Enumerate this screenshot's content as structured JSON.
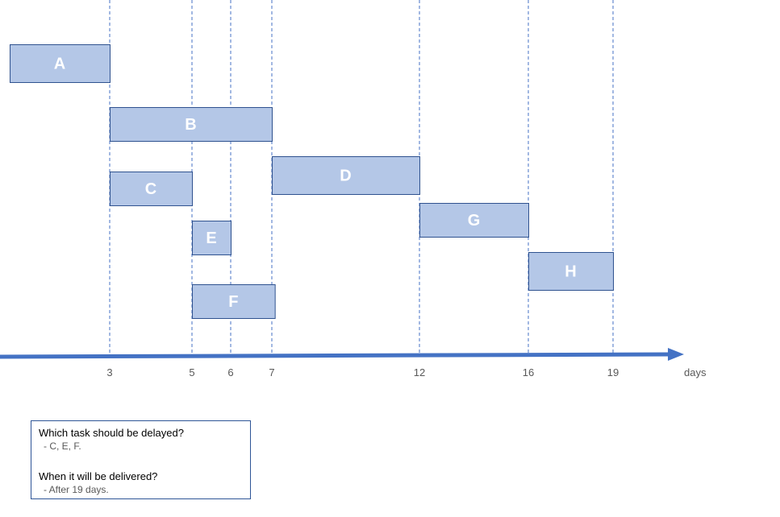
{
  "colors": {
    "bar_fill": "#b4c7e7",
    "bar_stroke": "#2f528f",
    "bar_text": "#ffffff",
    "axis": "#4472c4",
    "gridline": "#4472c4",
    "tick_text": "#595959",
    "box_border": "#2e5597"
  },
  "chart_data": {
    "type": "gantt",
    "axis_unit": "days",
    "ticks": [
      "3",
      "5",
      "6",
      "7",
      "12",
      "16",
      "19"
    ],
    "tick_values": [
      3,
      5,
      6,
      7,
      12,
      16,
      19
    ],
    "tasks": [
      {
        "name": "A",
        "start": 0,
        "end": 3
      },
      {
        "name": "B",
        "start": 3,
        "end": 7
      },
      {
        "name": "C",
        "start": 3,
        "end": 5
      },
      {
        "name": "D",
        "start": 7,
        "end": 12
      },
      {
        "name": "E",
        "start": 5,
        "end": 6
      },
      {
        "name": "F",
        "start": 5,
        "end": 7.1
      },
      {
        "name": "G",
        "start": 12,
        "end": 16
      },
      {
        "name": "H",
        "start": 16,
        "end": 19
      }
    ]
  },
  "qa": {
    "q1": "Which task should be delayed?",
    "a1": "- C, E, F.",
    "q2": "When it will be delivered?",
    "a2": "- After 19 days."
  }
}
